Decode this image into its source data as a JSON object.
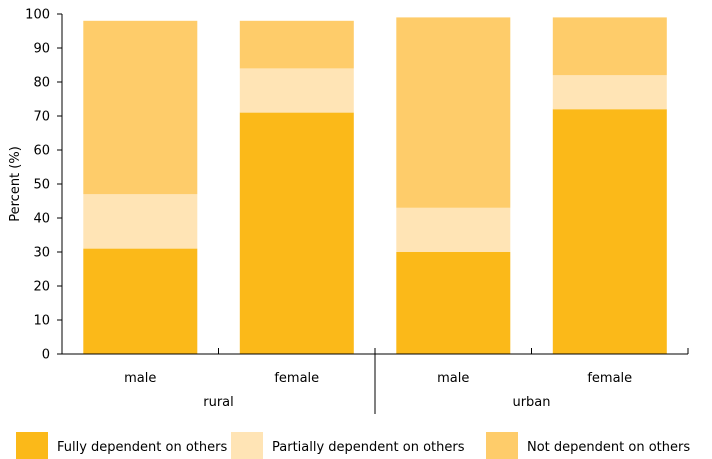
{
  "chart_data": {
    "type": "bar",
    "stacked": true,
    "groups": [
      "rural",
      "urban"
    ],
    "categories": [
      "male",
      "female",
      "male",
      "female"
    ],
    "category_groups": [
      "rural",
      "rural",
      "urban",
      "urban"
    ],
    "series": [
      {
        "name": "Fully dependent on others",
        "values": [
          31,
          71,
          30,
          72
        ],
        "color": "#FBB919"
      },
      {
        "name": "Partially dependent on others",
        "values": [
          16,
          13,
          13,
          10
        ],
        "color": "#FFE4B5"
      },
      {
        "name": "Not dependent on others",
        "values": [
          51,
          14,
          56,
          17
        ],
        "color": "#FECC6A"
      }
    ],
    "ylabel": "Percent (%)",
    "ylim": [
      0,
      100
    ],
    "yticks": [
      0,
      10,
      20,
      30,
      40,
      50,
      60,
      70,
      80,
      90,
      100
    ],
    "grid": false,
    "legend_position": "bottom"
  }
}
